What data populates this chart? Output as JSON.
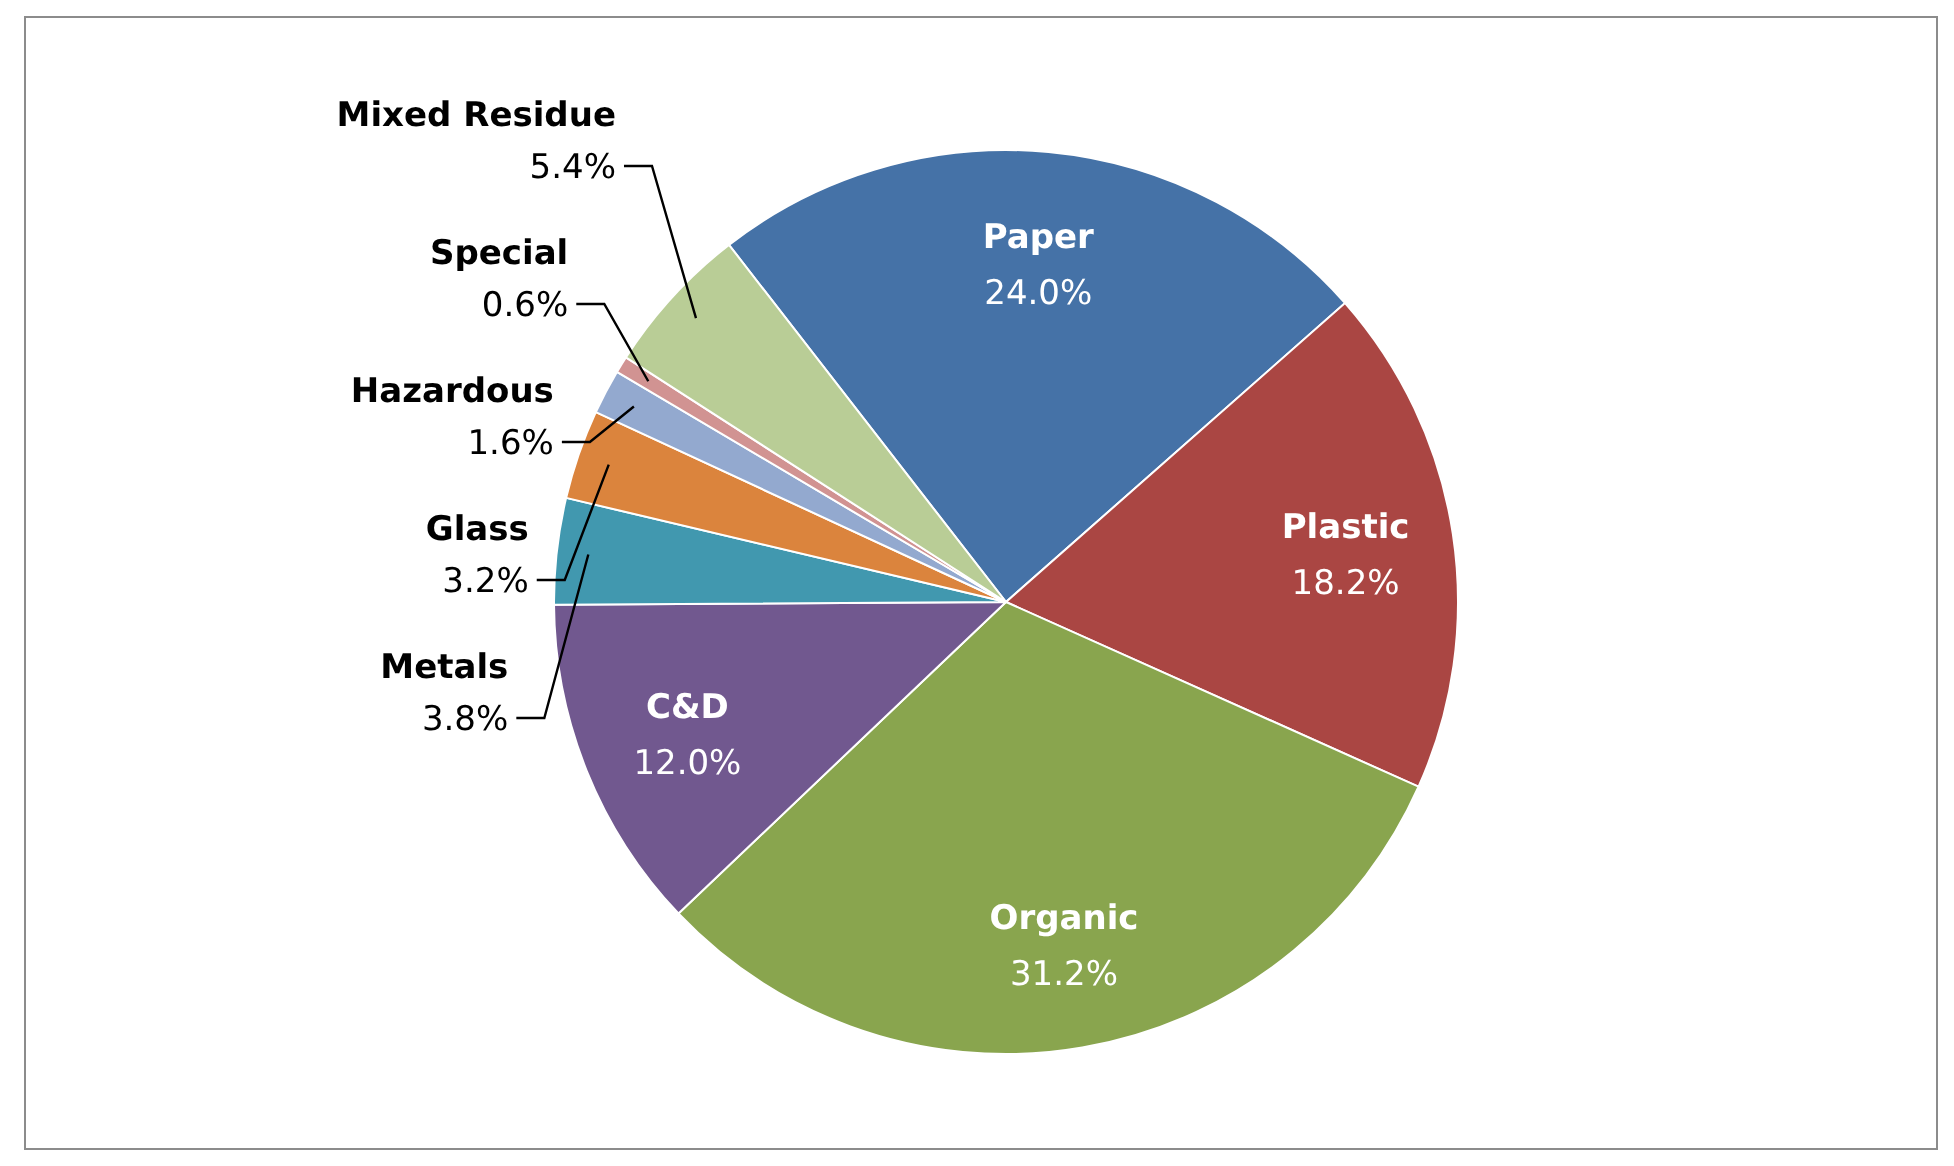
{
  "chart_data": {
    "type": "pie",
    "categories": [
      "Paper",
      "Plastic",
      "Organic",
      "C&D",
      "Metals",
      "Glass",
      "Hazardous",
      "Special",
      "Mixed Residue"
    ],
    "values": [
      24.0,
      18.2,
      31.2,
      12.0,
      3.8,
      3.2,
      1.6,
      0.6,
      5.4
    ],
    "value_labels": [
      "24.0%",
      "18.2%",
      "31.2%",
      "12.0%",
      "3.8%",
      "3.2%",
      "1.6%",
      "0.6%",
      "5.4%"
    ],
    "colors": [
      "#4572a7",
      "#aa4643",
      "#89a54e",
      "#71588f",
      "#4198af",
      "#db843d",
      "#93a9cf",
      "#d19392",
      "#b9cd96"
    ]
  }
}
